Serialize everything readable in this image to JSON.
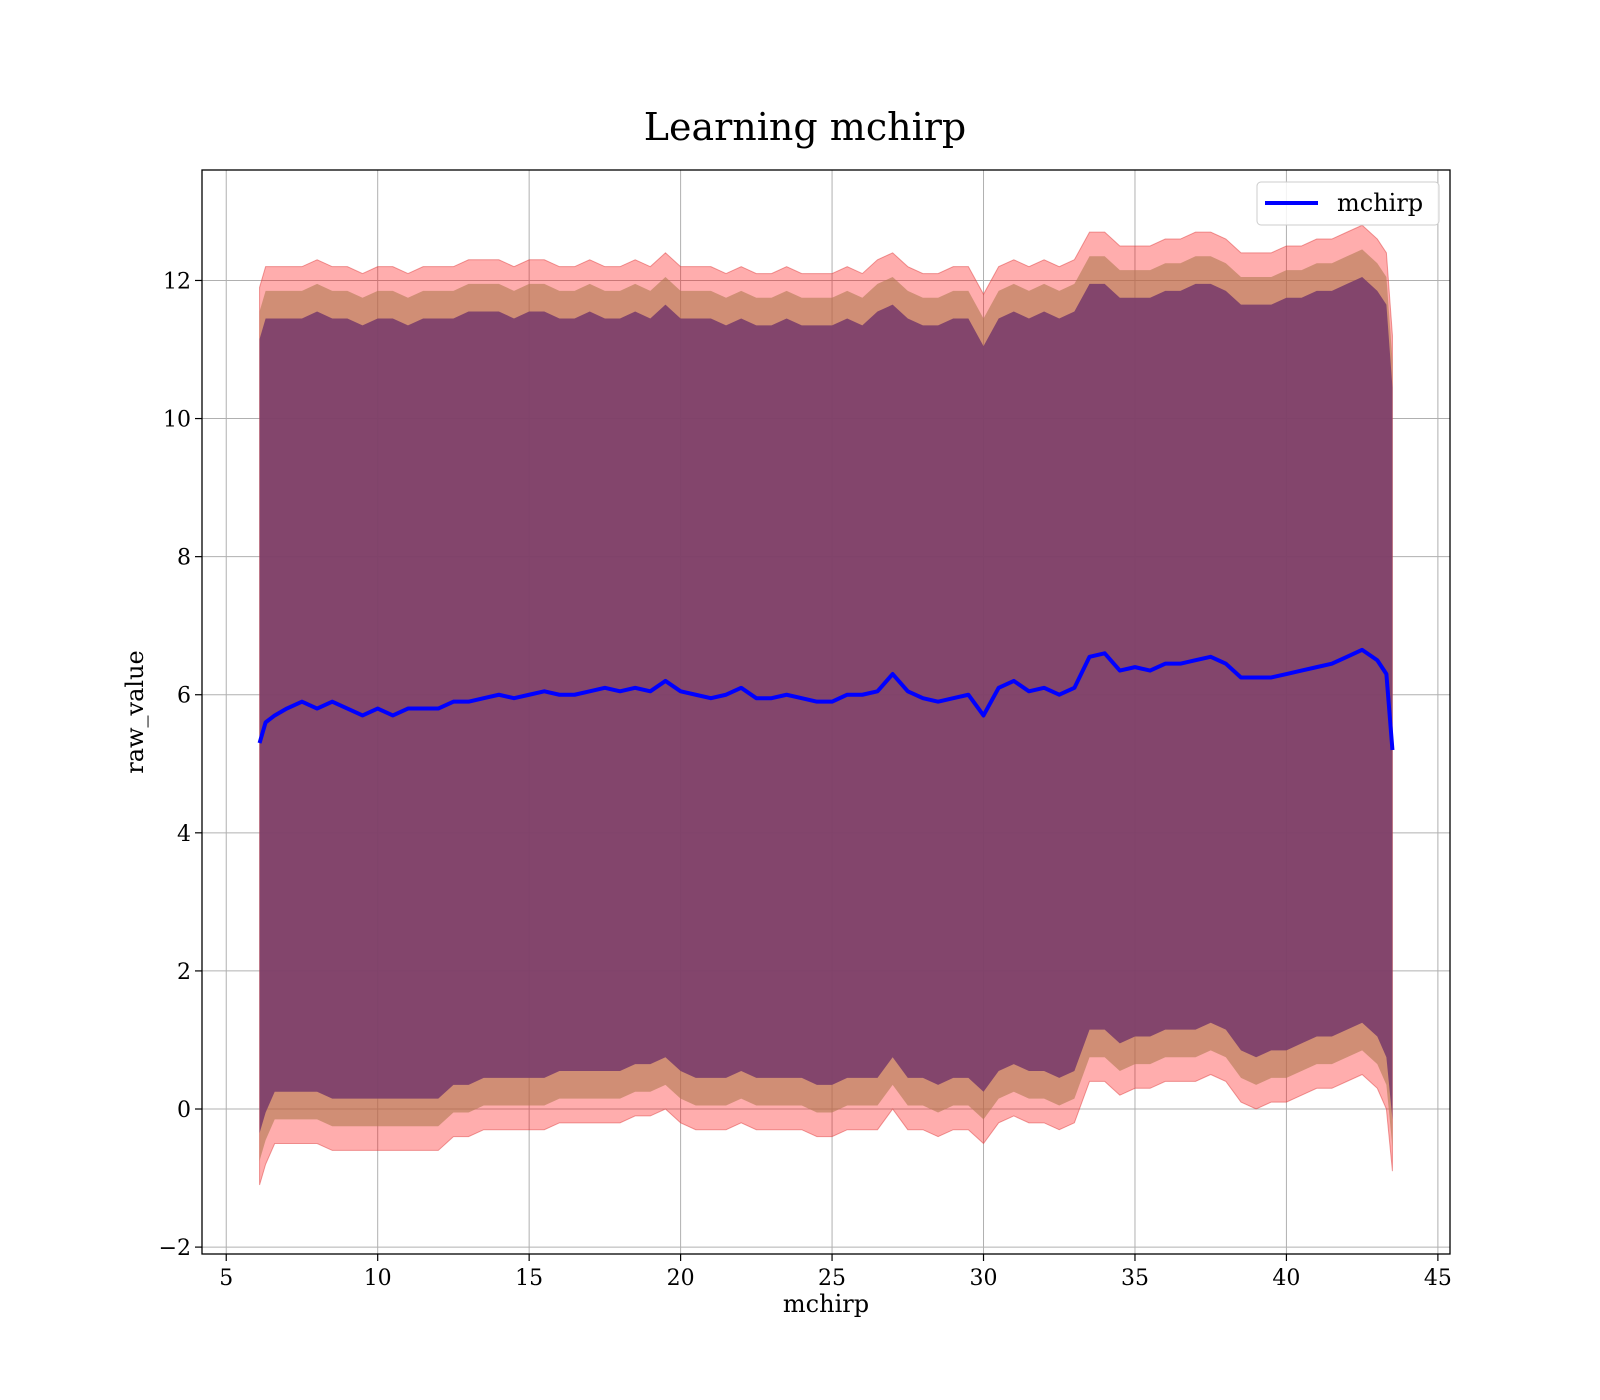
{
  "chart_data": {
    "type": "line",
    "title": "Learning mchirp",
    "xlabel": "mchirp",
    "ylabel": "raw_value",
    "xlim": [
      4.2,
      45.4
    ],
    "ylim": [
      -2.1,
      13.6
    ],
    "xticks": [
      5,
      10,
      15,
      20,
      25,
      30,
      35,
      40,
      45
    ],
    "yticks": [
      -2,
      0,
      2,
      4,
      6,
      8,
      10,
      12
    ],
    "xtick_labels": [
      "5",
      "10",
      "15",
      "20",
      "25",
      "30",
      "35",
      "40",
      "45"
    ],
    "ytick_labels": [
      "−2",
      "0",
      "2",
      "4",
      "6",
      "8",
      "10",
      "12"
    ],
    "grid": true,
    "legend": {
      "position": "top-right",
      "entries": [
        "mchirp"
      ]
    },
    "colors": {
      "line": "#0000ff",
      "band_outer": "#ff0000",
      "band_inner": "#7a3d6b",
      "band_mid": "#b07a50",
      "grid": "#b0b0b0"
    },
    "series": [
      {
        "name": "mchirp",
        "x": [
          6.1,
          6.3,
          6.6,
          7,
          7.5,
          8,
          8.5,
          9,
          9.5,
          10,
          10.5,
          11,
          11.5,
          12,
          12.5,
          13,
          13.5,
          14,
          14.5,
          15,
          15.5,
          16,
          16.5,
          17,
          17.5,
          18,
          18.5,
          19,
          19.5,
          20,
          20.5,
          21,
          21.5,
          22,
          22.5,
          23,
          23.5,
          24,
          24.5,
          25,
          25.5,
          26,
          26.5,
          27,
          27.5,
          28,
          28.5,
          29,
          29.5,
          30,
          30.5,
          31,
          31.5,
          32,
          32.5,
          33,
          33.5,
          34,
          34.5,
          35,
          35.5,
          36,
          36.5,
          37,
          37.5,
          38,
          38.5,
          39,
          39.5,
          40,
          40.5,
          41,
          41.5,
          42,
          42.5,
          43,
          43.3,
          43.5
        ],
        "y": [
          5.3,
          5.6,
          5.7,
          5.8,
          5.9,
          5.8,
          5.9,
          5.8,
          5.7,
          5.8,
          5.7,
          5.8,
          5.8,
          5.8,
          5.9,
          5.9,
          5.95,
          6.0,
          5.95,
          6.0,
          6.05,
          6.0,
          6.0,
          6.05,
          6.1,
          6.05,
          6.1,
          6.05,
          6.2,
          6.05,
          6.0,
          5.95,
          6.0,
          6.1,
          5.95,
          5.95,
          6.0,
          5.95,
          5.9,
          5.9,
          6.0,
          6.0,
          6.05,
          6.3,
          6.05,
          5.95,
          5.9,
          5.95,
          6.0,
          5.7,
          6.1,
          6.2,
          6.05,
          6.1,
          6.0,
          6.1,
          6.55,
          6.6,
          6.35,
          6.4,
          6.35,
          6.45,
          6.45,
          6.5,
          6.55,
          6.45,
          6.25,
          6.25,
          6.25,
          6.3,
          6.35,
          6.4,
          6.45,
          6.55,
          6.65,
          6.5,
          6.3,
          5.2
        ]
      }
    ],
    "bands": [
      {
        "x": [
          6.1,
          6.3,
          6.6,
          7,
          7.5,
          8,
          8.5,
          9,
          9.5,
          10,
          10.5,
          11,
          11.5,
          12,
          12.5,
          13,
          13.5,
          14,
          14.5,
          15,
          15.5,
          16,
          16.5,
          17,
          17.5,
          18,
          18.5,
          19,
          19.5,
          20,
          20.5,
          21,
          21.5,
          22,
          22.5,
          23,
          23.5,
          24,
          24.5,
          25,
          25.5,
          26,
          26.5,
          27,
          27.5,
          28,
          28.5,
          29,
          29.5,
          30,
          30.5,
          31,
          31.5,
          32,
          32.5,
          33,
          33.5,
          34,
          34.5,
          35,
          35.5,
          36,
          36.5,
          37,
          37.5,
          38,
          38.5,
          39,
          39.5,
          40,
          40.5,
          41,
          41.5,
          42,
          42.5,
          43,
          43.3,
          43.5
        ],
        "upper": [
          11.9,
          12.2,
          12.2,
          12.2,
          12.2,
          12.3,
          12.2,
          12.2,
          12.1,
          12.2,
          12.2,
          12.1,
          12.2,
          12.2,
          12.2,
          12.3,
          12.3,
          12.3,
          12.2,
          12.3,
          12.3,
          12.2,
          12.2,
          12.3,
          12.2,
          12.2,
          12.3,
          12.2,
          12.4,
          12.2,
          12.2,
          12.2,
          12.1,
          12.2,
          12.1,
          12.1,
          12.2,
          12.1,
          12.1,
          12.1,
          12.2,
          12.1,
          12.3,
          12.4,
          12.2,
          12.1,
          12.1,
          12.2,
          12.2,
          11.8,
          12.2,
          12.3,
          12.2,
          12.3,
          12.2,
          12.3,
          12.7,
          12.7,
          12.5,
          12.5,
          12.5,
          12.6,
          12.6,
          12.7,
          12.7,
          12.6,
          12.4,
          12.4,
          12.4,
          12.5,
          12.5,
          12.6,
          12.6,
          12.7,
          12.8,
          12.6,
          12.4,
          11.2
        ],
        "lower": [
          -1.1,
          -0.8,
          -0.5,
          -0.5,
          -0.5,
          -0.5,
          -0.6,
          -0.6,
          -0.6,
          -0.6,
          -0.6,
          -0.6,
          -0.6,
          -0.6,
          -0.4,
          -0.4,
          -0.3,
          -0.3,
          -0.3,
          -0.3,
          -0.3,
          -0.2,
          -0.2,
          -0.2,
          -0.2,
          -0.2,
          -0.1,
          -0.1,
          0.0,
          -0.2,
          -0.3,
          -0.3,
          -0.3,
          -0.2,
          -0.3,
          -0.3,
          -0.3,
          -0.3,
          -0.4,
          -0.4,
          -0.3,
          -0.3,
          -0.3,
          0.0,
          -0.3,
          -0.3,
          -0.4,
          -0.3,
          -0.3,
          -0.5,
          -0.2,
          -0.1,
          -0.2,
          -0.2,
          -0.3,
          -0.2,
          0.4,
          0.4,
          0.2,
          0.3,
          0.3,
          0.4,
          0.4,
          0.4,
          0.5,
          0.4,
          0.1,
          0.0,
          0.1,
          0.1,
          0.2,
          0.3,
          0.3,
          0.4,
          0.5,
          0.3,
          0.0,
          -0.9
        ]
      }
    ]
  }
}
